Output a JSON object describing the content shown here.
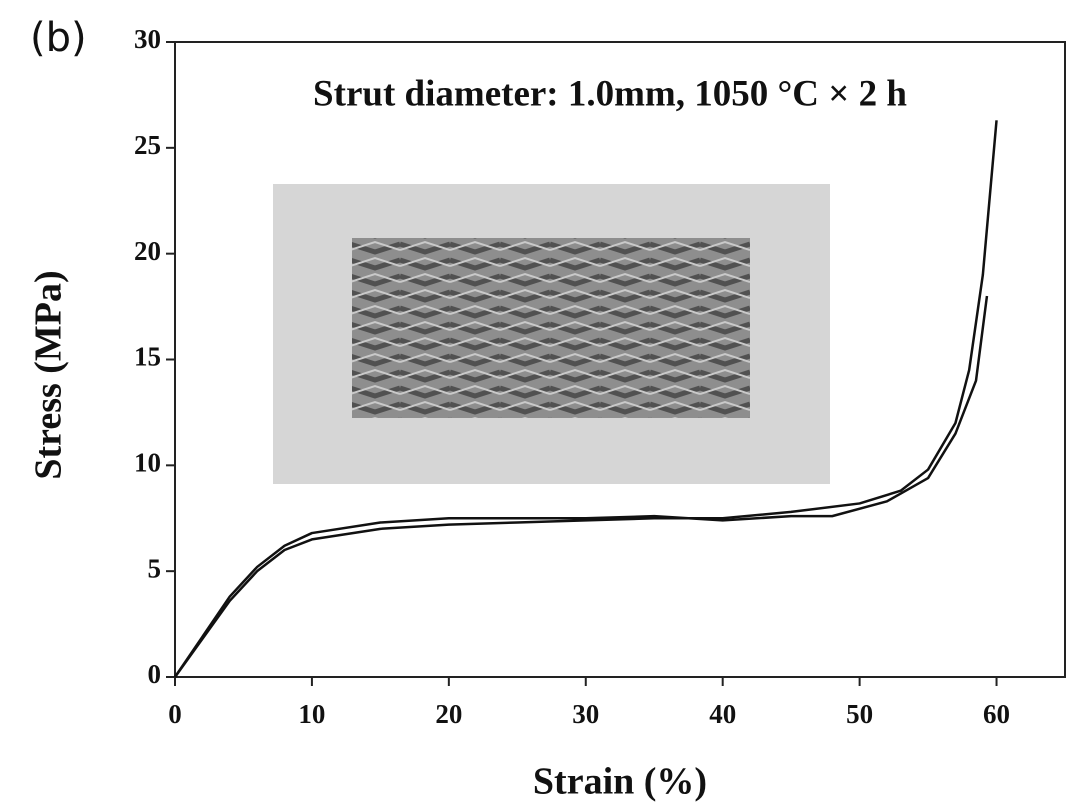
{
  "chart_data": {
    "type": "line",
    "panel_label": "(b)",
    "annotation": "Strut diameter: 1.0mm, 1050 °C × 2 h",
    "x_label": "Strain (%)",
    "y_label": "Stress (MPa)",
    "xlim": [
      0,
      65
    ],
    "xticks": [
      0,
      10,
      20,
      30,
      40,
      50,
      60
    ],
    "ylim": [
      0,
      30
    ],
    "yticks": [
      0,
      5,
      10,
      15,
      20,
      25,
      30
    ],
    "series": [
      {
        "color": "#111111",
        "x": [
          0,
          2,
          4,
          6,
          8,
          10,
          15,
          20,
          25,
          30,
          35,
          40,
          45,
          50,
          53,
          55,
          57,
          58,
          59,
          60
        ],
        "values": [
          0,
          1.8,
          3.6,
          5.0,
          6.0,
          6.5,
          7.0,
          7.2,
          7.3,
          7.4,
          7.5,
          7.5,
          7.8,
          8.2,
          8.8,
          9.8,
          12,
          14.5,
          19,
          26.3
        ]
      },
      {
        "color": "#111111",
        "x": [
          0,
          2,
          4,
          6,
          8,
          10,
          15,
          20,
          25,
          30,
          35,
          40,
          45,
          48,
          52,
          55,
          57,
          58.5,
          59.3
        ],
        "values": [
          0,
          1.9,
          3.8,
          5.2,
          6.2,
          6.8,
          7.3,
          7.5,
          7.5,
          7.5,
          7.6,
          7.4,
          7.6,
          7.6,
          8.3,
          9.4,
          11.5,
          14,
          18
        ]
      }
    ]
  }
}
